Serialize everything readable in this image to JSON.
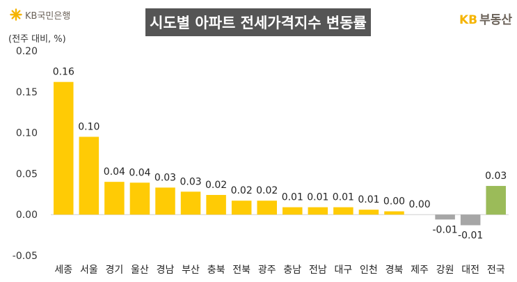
{
  "header": {
    "bank_logo": "KB국민은행",
    "title": "시도별 아파트 전세가격지수 변동률",
    "brand_kb": "KB",
    "brand_name": "부동산"
  },
  "colors": {
    "bar_default": "#FFCB05",
    "bar_negative": "#A6A6A6",
    "bar_national": "#9BBB59",
    "title_bg": "#555555"
  },
  "chart_data": {
    "type": "bar",
    "title": "시도별 아파트 전세가격지수 변동률",
    "ylabel": "(전주 대비, %)",
    "xlabel": "",
    "ylim": [
      -0.05,
      0.2
    ],
    "yticks": [
      "0.20",
      "0.15",
      "0.10",
      "0.05",
      "0.00",
      "-0.05"
    ],
    "grid": false,
    "categories": [
      "세종",
      "서울",
      "경기",
      "울산",
      "경남",
      "부산",
      "충북",
      "전북",
      "광주",
      "충남",
      "전남",
      "대구",
      "인천",
      "경북",
      "제주",
      "강원",
      "대전",
      "전국"
    ],
    "values": [
      0.162,
      0.095,
      0.04,
      0.039,
      0.033,
      0.028,
      0.024,
      0.017,
      0.017,
      0.009,
      0.009,
      0.009,
      0.006,
      0.004,
      0.0,
      -0.006,
      -0.013,
      0.035
    ],
    "data_labels": [
      "0.16",
      "0.10",
      "0.04",
      "0.04",
      "0.03",
      "0.03",
      "0.02",
      "0.02",
      "0.02",
      "0.01",
      "0.01",
      "0.01",
      "0.01",
      "0.00",
      "0.00",
      "-0.01",
      "-0.01",
      "0.03"
    ],
    "bar_colors": [
      "#FFCB05",
      "#FFCB05",
      "#FFCB05",
      "#FFCB05",
      "#FFCB05",
      "#FFCB05",
      "#FFCB05",
      "#FFCB05",
      "#FFCB05",
      "#FFCB05",
      "#FFCB05",
      "#FFCB05",
      "#FFCB05",
      "#FFCB05",
      "#FFCB05",
      "#A6A6A6",
      "#A6A6A6",
      "#9BBB59"
    ]
  }
}
